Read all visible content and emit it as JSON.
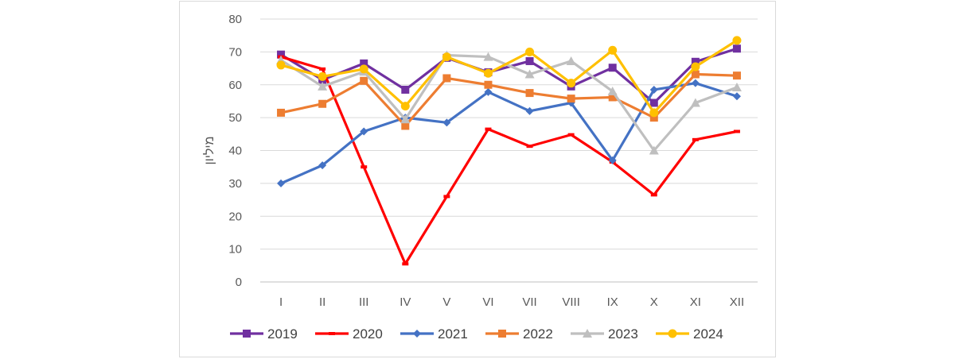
{
  "chart_data": {
    "type": "line",
    "title": "",
    "xlabel": "",
    "ylabel": "מיליון",
    "ylim": [
      0,
      80
    ],
    "yticks": [
      0,
      10,
      20,
      30,
      40,
      50,
      60,
      70,
      80
    ],
    "grid": true,
    "legend_position": "bottom",
    "categories": [
      "I",
      "II",
      "III",
      "IV",
      "V",
      "VI",
      "VII",
      "VIII",
      "IX",
      "X",
      "XI",
      "XII"
    ],
    "series": [
      {
        "name": "2019",
        "color": "#7030a0",
        "marker": "square",
        "values": [
          69.2,
          61.5,
          66.5,
          58.5,
          68.2,
          63.8,
          67.2,
          59.5,
          65.2,
          54.5,
          67.0,
          71.0
        ]
      },
      {
        "name": "2020",
        "color": "#ff0000",
        "marker": "dash",
        "values": [
          68.5,
          64.8,
          35.0,
          5.5,
          26.0,
          46.5,
          41.3,
          44.8,
          36.5,
          26.5,
          43.3,
          45.8
        ]
      },
      {
        "name": "2021",
        "color": "#4472c4",
        "marker": "diamond",
        "values": [
          30.0,
          35.5,
          45.8,
          50.0,
          48.5,
          57.8,
          52.0,
          54.5,
          37.0,
          58.5,
          60.5,
          56.5
        ]
      },
      {
        "name": "2022",
        "color": "#ed7d31",
        "marker": "square",
        "values": [
          51.5,
          54.2,
          61.2,
          47.5,
          62.0,
          60.0,
          57.5,
          55.8,
          56.2,
          50.0,
          63.2,
          62.8
        ]
      },
      {
        "name": "2023",
        "color": "#bfbfbf",
        "marker": "triangle",
        "values": [
          67.5,
          59.5,
          64.0,
          49.5,
          69.0,
          68.5,
          63.2,
          67.2,
          58.0,
          40.0,
          54.5,
          59.2
        ]
      },
      {
        "name": "2024",
        "color": "#ffc000",
        "marker": "circle",
        "values": [
          66.0,
          62.5,
          64.8,
          53.5,
          68.5,
          63.5,
          70.0,
          60.5,
          70.5,
          51.5,
          65.5,
          73.5
        ]
      }
    ]
  }
}
